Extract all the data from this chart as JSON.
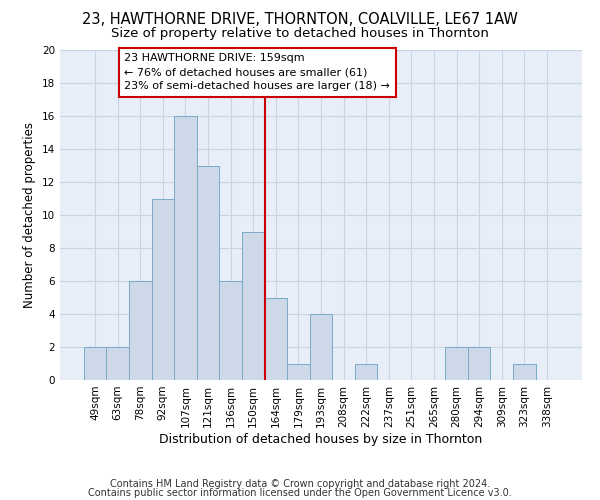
{
  "title1": "23, HAWTHORNE DRIVE, THORNTON, COALVILLE, LE67 1AW",
  "title2": "Size of property relative to detached houses in Thornton",
  "xlabel": "Distribution of detached houses by size in Thornton",
  "ylabel": "Number of detached properties",
  "footnote1": "Contains HM Land Registry data © Crown copyright and database right 2024.",
  "footnote2": "Contains public sector information licensed under the Open Government Licence v3.0.",
  "bar_labels": [
    "49sqm",
    "63sqm",
    "78sqm",
    "92sqm",
    "107sqm",
    "121sqm",
    "136sqm",
    "150sqm",
    "164sqm",
    "179sqm",
    "193sqm",
    "208sqm",
    "222sqm",
    "237sqm",
    "251sqm",
    "265sqm",
    "280sqm",
    "294sqm",
    "309sqm",
    "323sqm",
    "338sqm"
  ],
  "bar_values": [
    2,
    2,
    6,
    11,
    16,
    13,
    6,
    9,
    5,
    1,
    4,
    0,
    1,
    0,
    0,
    0,
    2,
    2,
    0,
    1,
    0
  ],
  "bar_color": "#cdd9e8",
  "bar_edge_color": "#7aaac8",
  "vline_color": "#cc0000",
  "annotation_text": "23 HAWTHORNE DRIVE: 159sqm\n← 76% of detached houses are smaller (61)\n23% of semi-detached houses are larger (18) →",
  "annotation_box_color": "#cc0000",
  "ylim": [
    0,
    20
  ],
  "yticks": [
    0,
    2,
    4,
    6,
    8,
    10,
    12,
    14,
    16,
    18,
    20
  ],
  "grid_color": "#c8d4e4",
  "background_color": "#e8eef8",
  "title1_fontsize": 10.5,
  "title2_fontsize": 9.5,
  "xlabel_fontsize": 9,
  "ylabel_fontsize": 8.5,
  "annotation_fontsize": 8,
  "footnote_fontsize": 7,
  "tick_fontsize": 7.5
}
